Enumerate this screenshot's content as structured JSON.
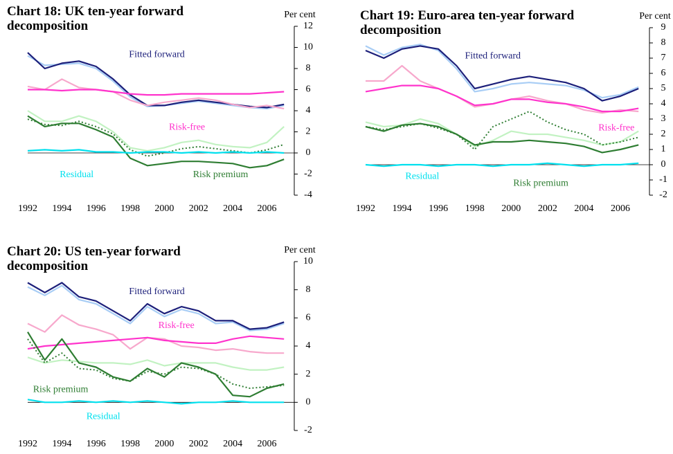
{
  "chart_data": [
    {
      "type": "line",
      "title": "Chart 18: UK ten-year forward decomposition",
      "ylabel": "Per cent",
      "x": [
        1992,
        1993,
        1994,
        1995,
        1996,
        1997,
        1998,
        1999,
        2000,
        2001,
        2002,
        2003,
        2004,
        2005,
        2006,
        2007
      ],
      "xlim": [
        1992,
        2007.6
      ],
      "xticks": [
        1992,
        1994,
        1996,
        1998,
        2000,
        2002,
        2004,
        2006
      ],
      "ylim": [
        -4,
        12
      ],
      "yticks": [
        -4,
        -2,
        0,
        2,
        4,
        6,
        8,
        10,
        12
      ],
      "series": [
        {
          "color": "#a8cdf5",
          "values": [
            9.2,
            8.3,
            8.4,
            8.5,
            8.0,
            6.8,
            5.3,
            4.4,
            4.5,
            4.7,
            4.9,
            4.7,
            4.5,
            4.3,
            4.2,
            4.5
          ]
        },
        {
          "name": "Fitted forward",
          "color": "#1c1f7a",
          "values": [
            9.5,
            8.0,
            8.5,
            8.7,
            8.2,
            7.0,
            5.5,
            4.5,
            4.5,
            4.8,
            5.0,
            4.8,
            4.6,
            4.4,
            4.3,
            4.6
          ]
        },
        {
          "color": "#f7a8cc",
          "values": [
            6.3,
            6.0,
            7.0,
            6.2,
            6.0,
            5.8,
            5.0,
            4.5,
            4.8,
            5.0,
            5.2,
            5.0,
            4.6,
            4.3,
            4.5,
            4.2
          ]
        },
        {
          "name": "Risk-free",
          "color": "#ff33cc",
          "values": [
            6.0,
            6.0,
            5.9,
            6.0,
            6.0,
            5.8,
            5.6,
            5.5,
            5.5,
            5.6,
            5.6,
            5.6,
            5.6,
            5.6,
            5.7,
            5.8
          ]
        },
        {
          "color": "#c2f2c2",
          "values": [
            4.0,
            3.0,
            3.0,
            3.5,
            3.0,
            2.0,
            0.5,
            0.2,
            0.5,
            1.0,
            1.2,
            0.8,
            0.6,
            0.5,
            1.0,
            2.5
          ]
        },
        {
          "name": "Risk premium",
          "color": "#2e7d32",
          "values": [
            3.5,
            2.5,
            2.8,
            2.8,
            2.2,
            1.5,
            -0.5,
            -1.2,
            -1.0,
            -0.8,
            -0.8,
            -0.9,
            -1.0,
            -1.4,
            -1.2,
            -0.6
          ]
        },
        {
          "color": "#2e7d32",
          "dash": true,
          "values": [
            3.2,
            2.7,
            2.6,
            3.0,
            2.5,
            1.8,
            0.3,
            -0.3,
            0.0,
            0.4,
            0.6,
            0.4,
            0.2,
            0.0,
            0.3,
            0.8
          ]
        },
        {
          "name": "Residual",
          "color": "#00e0ee",
          "values": [
            0.2,
            0.3,
            0.2,
            0.3,
            0.1,
            0.1,
            0.0,
            0.1,
            0.1,
            0.0,
            0.1,
            0.0,
            0.1,
            0.0,
            0.1,
            0.0
          ]
        }
      ]
    },
    {
      "type": "line",
      "title": "Chart 19: Euro-area ten-year forward decomposition",
      "ylabel": "Per cent",
      "x": [
        1992,
        1993,
        1994,
        1995,
        1996,
        1997,
        1998,
        1999,
        2000,
        2001,
        2002,
        2003,
        2004,
        2005,
        2006,
        2007
      ],
      "xlim": [
        1992,
        2007.6
      ],
      "xticks": [
        1992,
        1994,
        1996,
        1998,
        2000,
        2002,
        2004,
        2006
      ],
      "ylim": [
        -2,
        9
      ],
      "yticks": [
        -2,
        -1,
        0,
        1,
        2,
        3,
        4,
        5,
        6,
        7,
        8,
        9
      ],
      "series": [
        {
          "color": "#a8cdf5",
          "values": [
            7.8,
            7.2,
            7.7,
            7.9,
            7.5,
            6.3,
            4.8,
            5.0,
            5.3,
            5.4,
            5.3,
            5.2,
            4.9,
            4.4,
            4.6,
            5.1
          ]
        },
        {
          "name": "Fitted forward",
          "color": "#1c1f7a",
          "values": [
            7.5,
            7.0,
            7.6,
            7.8,
            7.6,
            6.5,
            5.0,
            5.3,
            5.6,
            5.8,
            5.6,
            5.4,
            5.0,
            4.2,
            4.5,
            5.0
          ]
        },
        {
          "color": "#f7a8cc",
          "values": [
            5.5,
            5.5,
            6.5,
            5.5,
            5.0,
            4.5,
            3.8,
            4.0,
            4.3,
            4.5,
            4.2,
            4.0,
            3.6,
            3.4,
            3.6,
            3.5
          ]
        },
        {
          "name": "Risk-free",
          "color": "#ff33cc",
          "values": [
            4.8,
            5.0,
            5.2,
            5.2,
            5.0,
            4.5,
            3.9,
            4.0,
            4.3,
            4.3,
            4.1,
            4.0,
            3.8,
            3.5,
            3.5,
            3.7
          ]
        },
        {
          "color": "#c2f2c2",
          "values": [
            2.8,
            2.5,
            2.6,
            3.0,
            2.7,
            2.0,
            1.2,
            1.6,
            2.2,
            2.0,
            2.0,
            1.8,
            1.6,
            1.3,
            1.5,
            2.2
          ]
        },
        {
          "name": "Risk premium",
          "color": "#2e7d32",
          "values": [
            2.5,
            2.2,
            2.6,
            2.7,
            2.5,
            2.0,
            1.3,
            1.5,
            1.5,
            1.6,
            1.5,
            1.4,
            1.2,
            0.8,
            1.0,
            1.3
          ]
        },
        {
          "color": "#2e7d32",
          "dash": true,
          "values": [
            2.5,
            2.3,
            2.5,
            2.7,
            2.4,
            2.0,
            1.0,
            2.5,
            3.0,
            3.5,
            2.8,
            2.3,
            2.0,
            1.3,
            1.5,
            1.8
          ]
        },
        {
          "name": "Residual",
          "color": "#00e0ee",
          "values": [
            0.0,
            -0.1,
            0.0,
            0.0,
            -0.1,
            0.0,
            0.0,
            -0.1,
            0.0,
            0.0,
            0.1,
            0.0,
            -0.1,
            0.0,
            0.0,
            0.1
          ]
        }
      ]
    },
    {
      "type": "line",
      "title": "Chart 20: US ten-year forward decomposition",
      "ylabel": "Per cent",
      "x": [
        1992,
        1993,
        1994,
        1995,
        1996,
        1997,
        1998,
        1999,
        2000,
        2001,
        2002,
        2003,
        2004,
        2005,
        2006,
        2007
      ],
      "xlim": [
        1992,
        2007.6
      ],
      "xticks": [
        1992,
        1994,
        1996,
        1998,
        2000,
        2002,
        2004,
        2006
      ],
      "ylim": [
        -2,
        10
      ],
      "yticks": [
        -2,
        0,
        2,
        4,
        6,
        8,
        10
      ],
      "series": [
        {
          "color": "#a8cdf5",
          "values": [
            8.2,
            7.6,
            8.3,
            7.3,
            7.0,
            6.3,
            5.6,
            6.8,
            6.1,
            6.6,
            6.3,
            5.6,
            5.7,
            5.1,
            5.2,
            5.6
          ]
        },
        {
          "name": "Fitted forward",
          "color": "#1c1f7a",
          "values": [
            8.5,
            7.8,
            8.5,
            7.5,
            7.2,
            6.5,
            5.8,
            7.0,
            6.3,
            6.8,
            6.5,
            5.8,
            5.8,
            5.2,
            5.3,
            5.7
          ]
        },
        {
          "color": "#f7a8cc",
          "values": [
            5.6,
            5.0,
            6.2,
            5.5,
            5.2,
            4.8,
            3.8,
            4.6,
            4.5,
            4.0,
            3.9,
            3.7,
            3.8,
            3.6,
            3.5,
            3.5
          ]
        },
        {
          "name": "Risk-free",
          "color": "#ff33cc",
          "values": [
            3.8,
            4.0,
            4.1,
            4.2,
            4.3,
            4.4,
            4.5,
            4.6,
            4.4,
            4.3,
            4.2,
            4.2,
            4.5,
            4.7,
            4.6,
            4.5
          ]
        },
        {
          "color": "#c2f2c2",
          "values": [
            3.2,
            2.8,
            3.0,
            2.9,
            2.8,
            2.8,
            2.7,
            3.0,
            2.6,
            2.8,
            2.8,
            2.8,
            2.5,
            2.3,
            2.3,
            2.5
          ]
        },
        {
          "name": "Risk premium",
          "color": "#2e7d32",
          "values": [
            5.0,
            3.0,
            4.5,
            2.8,
            2.5,
            1.8,
            1.5,
            2.4,
            1.8,
            2.8,
            2.5,
            2.0,
            0.5,
            0.4,
            1.0,
            1.3
          ]
        },
        {
          "color": "#2e7d32",
          "dash": true,
          "values": [
            4.5,
            2.8,
            3.5,
            2.4,
            2.3,
            1.7,
            1.5,
            2.2,
            2.0,
            2.5,
            2.4,
            2.0,
            1.3,
            1.0,
            1.1,
            1.2
          ]
        },
        {
          "name": "Residual",
          "color": "#00e0ee",
          "values": [
            0.2,
            0.0,
            0.0,
            0.1,
            0.0,
            0.1,
            0.0,
            0.1,
            0.0,
            -0.1,
            0.0,
            0.0,
            0.1,
            0.0,
            0.0,
            0.0
          ]
        }
      ]
    }
  ]
}
